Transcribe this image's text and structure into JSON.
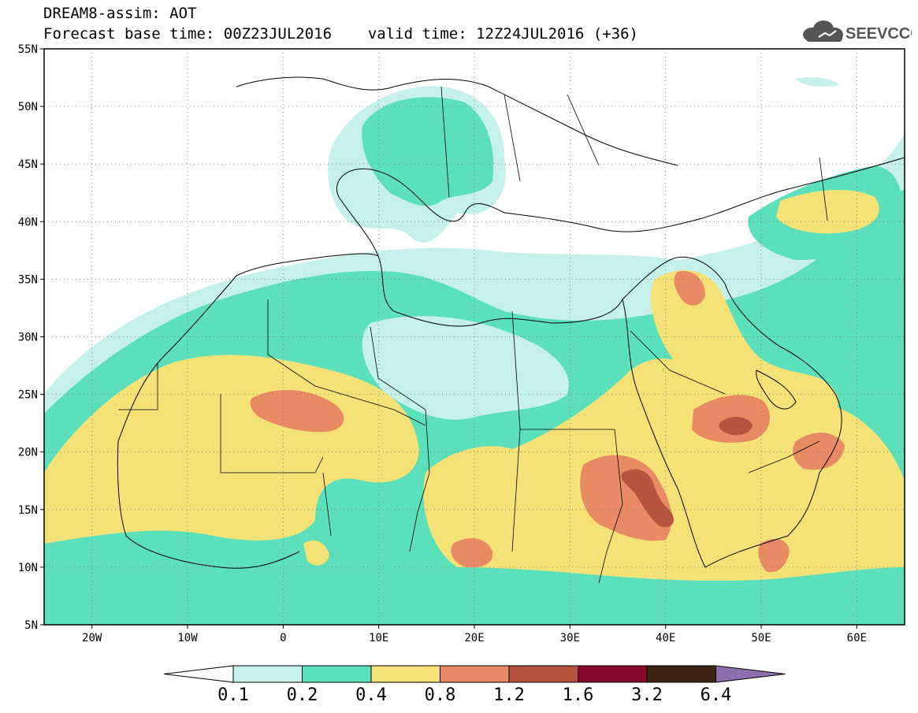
{
  "header": {
    "title": "DREAM8-assim: AOT",
    "base_time_label": "Forecast base time: 00Z23JUL2016",
    "valid_time_label": "valid time: 12Z24JUL2016 (+36)",
    "logo_text": "SEEVCCC"
  },
  "map": {
    "lat_ticks": [
      {
        "lat": 55,
        "label": "55N"
      },
      {
        "lat": 50,
        "label": "50N"
      },
      {
        "lat": 45,
        "label": "45N"
      },
      {
        "lat": 40,
        "label": "40N"
      },
      {
        "lat": 35,
        "label": "35N"
      },
      {
        "lat": 30,
        "label": "30N"
      },
      {
        "lat": 25,
        "label": "25N"
      },
      {
        "lat": 20,
        "label": "20N"
      },
      {
        "lat": 15,
        "label": "15N"
      },
      {
        "lat": 10,
        "label": "10N"
      },
      {
        "lat": 5,
        "label": "5N"
      }
    ],
    "lon_ticks": [
      {
        "lon": -20,
        "label": "20W"
      },
      {
        "lon": -10,
        "label": "10W"
      },
      {
        "lon": 0,
        "label": "0"
      },
      {
        "lon": 10,
        "label": "10E"
      },
      {
        "lon": 20,
        "label": "20E"
      },
      {
        "lon": 30,
        "label": "30E"
      },
      {
        "lon": 40,
        "label": "40E"
      },
      {
        "lon": 50,
        "label": "50E"
      },
      {
        "lon": 60,
        "label": "60E"
      }
    ],
    "lon_range": [
      -25,
      65
    ],
    "lat_range": [
      5,
      55
    ]
  },
  "colorbar": {
    "labels": [
      "0.1",
      "0.2",
      "0.4",
      "0.8",
      "1.2",
      "1.6",
      "3.2",
      "6.4"
    ],
    "colors": [
      "#c6f0ea",
      "#5ce0bc",
      "#f5e277",
      "#e88a64",
      "#b5553f",
      "#860b2a",
      "#3c2312",
      "#8d6fb0"
    ]
  }
}
